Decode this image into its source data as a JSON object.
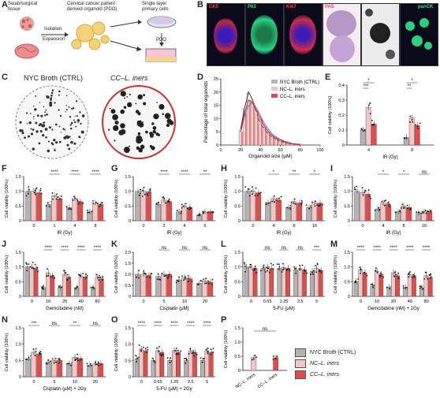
{
  "panel_letters": [
    "A",
    "B",
    "C",
    "D",
    "E",
    "F",
    "G",
    "H",
    "I",
    "J",
    "K",
    "L",
    "M",
    "N",
    "O",
    "P"
  ],
  "panelA": {
    "swab": "Swab/surgical\ntissue",
    "pdo": "Cervical cancer patient\nderived organoid (PDO)",
    "single": "Single layer\nprimary cells",
    "isolation": "Isolation",
    "expansion": "Expansion",
    "pdo_label": "PDO"
  },
  "panelB": {
    "labels": [
      {
        "text": "CK5",
        "color": "#ff3b3b"
      },
      {
        "text": "P63",
        "color": "#2ee08a"
      },
      {
        "text": "Ki67",
        "color": "#ff4040"
      },
      {
        "text": "PAS",
        "color": "#ff3b6b"
      },
      {
        "text": "",
        "color": "#ffffff"
      },
      {
        "text": "panCK",
        "color": "#2ee08a"
      }
    ]
  },
  "panelC": {
    "left_title": "NYC Broth (CTRL)",
    "right_title": "CC–L. iners"
  },
  "legend": {
    "items": [
      {
        "name": "NYC Broth (CTRL)",
        "color": "#b7b2b2"
      },
      {
        "name": "NC–L. iners",
        "color": "#f3c6c6"
      },
      {
        "name": "CC–L. iners",
        "color": "#e34b4b"
      }
    ]
  },
  "chart_data": [
    {
      "id": "D",
      "type": "bar",
      "xlabel": "Organoid size (μM)",
      "ylabel": "Percentage of total organoids",
      "xlim": [
        0,
        100
      ],
      "ylim": [
        0,
        25
      ],
      "xticks": [
        0,
        20,
        40,
        60,
        80,
        100
      ],
      "yticks": [
        0,
        5,
        10,
        15,
        20,
        25
      ],
      "legend": [
        "NYC Broth (CTRL)",
        "NC–L. iners",
        "CC–L. iners"
      ],
      "bins": [
        20,
        24,
        28,
        32,
        36,
        40,
        44,
        48,
        52,
        56,
        60,
        64,
        68,
        72,
        76,
        80
      ],
      "series": [
        {
          "name": "NYC Broth (CTRL)",
          "values": [
            6,
            14,
            20,
            17,
            12,
            8,
            6,
            4,
            3,
            2,
            1.5,
            1,
            0.7,
            0.5,
            0.3,
            0.2
          ]
        },
        {
          "name": "NC–L. iners",
          "values": [
            5,
            11,
            15,
            16,
            14,
            11,
            8,
            6,
            4,
            3,
            2,
            1.5,
            1,
            0.6,
            0.4,
            0.3
          ]
        },
        {
          "name": "CC–L. iners",
          "values": [
            5,
            12,
            17,
            16,
            13,
            10,
            7,
            5,
            3.5,
            2.5,
            2,
            1.2,
            0.8,
            0.5,
            0.3,
            0.2
          ]
        }
      ]
    },
    {
      "id": "E",
      "type": "bar",
      "xlabel": "IR (Gy)",
      "ylabel": "Cell viability (100%)",
      "ylim": [
        0,
        0.4
      ],
      "yticks": [
        "0",
        "0.1",
        "0.2",
        "0.3",
        "0.4"
      ],
      "categories": [
        "4",
        "8"
      ],
      "series": [
        {
          "name": "NYC Broth (CTRL)",
          "values": [
            0.1,
            0.05
          ]
        },
        {
          "name": "NC–L. iners",
          "values": [
            0.25,
            0.18
          ]
        },
        {
          "name": "CC–L. iners",
          "values": [
            0.14,
            0.13
          ]
        }
      ],
      "sig": [
        {
          "text": "*",
          "pair": [
            0,
            2
          ]
        },
        {
          "text": "***",
          "pair": [
            0,
            1
          ]
        },
        {
          "text": "*",
          "pair": [
            3,
            5
          ]
        },
        {
          "text": "**",
          "pair": [
            3,
            4
          ]
        }
      ]
    },
    {
      "id": "F",
      "type": "bar",
      "xlabel": "IR (Gy)",
      "ylabel": "Cell viability (100%)",
      "ylim": [
        0,
        1.5
      ],
      "yticks": [
        "0",
        "0.5",
        "1.0",
        "1.5"
      ],
      "categories": [
        "0",
        "1",
        "4",
        "8"
      ],
      "series": [
        {
          "name": "NYC Broth (CTRL)",
          "values": [
            1.0,
            0.55,
            0.45,
            0.3
          ]
        },
        {
          "name": "NC–L. iners",
          "values": [
            1.0,
            0.85,
            0.75,
            0.6
          ]
        },
        {
          "name": "CC–L. iners",
          "values": [
            0.95,
            0.75,
            0.65,
            0.55
          ]
        }
      ],
      "sig": [
        {
          "text": "****",
          "group": 1
        },
        {
          "text": "****",
          "group": 2
        },
        {
          "text": "****",
          "group": 3
        }
      ]
    },
    {
      "id": "G",
      "type": "bar",
      "xlabel": "IR (Gy)",
      "ylabel": "Cell viability (100%)",
      "ylim": [
        0,
        1.5
      ],
      "yticks": [
        "0",
        "0.5",
        "1.0",
        "1.5"
      ],
      "categories": [
        "0",
        "2",
        "4",
        "6"
      ],
      "series": [
        {
          "name": "NYC Broth (CTRL)",
          "values": [
            1.0,
            0.55,
            0.3,
            0.2
          ]
        },
        {
          "name": "NC–L. iners",
          "values": [
            1.0,
            0.7,
            0.5,
            0.3
          ]
        },
        {
          "name": "CC–L. iners",
          "values": [
            0.98,
            0.65,
            0.45,
            0.3
          ]
        }
      ],
      "sig": [
        {
          "text": "****",
          "group": 1
        },
        {
          "text": "****",
          "group": 2
        },
        {
          "text": "**",
          "group": 3
        }
      ]
    },
    {
      "id": "H",
      "type": "bar",
      "xlabel": "IR (Gy)",
      "ylabel": "Cell viability (100%)",
      "ylim": [
        0,
        1.5
      ],
      "yticks": [
        "0",
        "0.5",
        "1.0",
        "1.5"
      ],
      "categories": [
        "0",
        "4",
        "8",
        "16"
      ],
      "series": [
        {
          "name": "NYC Broth (CTRL)",
          "values": [
            1.0,
            0.6,
            0.45,
            0.45
          ]
        },
        {
          "name": "NC–L. iners",
          "values": [
            1.0,
            0.75,
            0.65,
            0.6
          ]
        },
        {
          "name": "CC–L. iners",
          "values": [
            0.95,
            0.7,
            0.6,
            0.6
          ]
        }
      ],
      "sig": [
        {
          "text": "*",
          "group": 1
        },
        {
          "text": "**",
          "group": 2
        },
        {
          "text": "*",
          "group": 3
        }
      ]
    },
    {
      "id": "I",
      "type": "bar",
      "xlabel": "IR (Gy)",
      "ylabel": "Cell viability (100%)",
      "ylim": [
        0,
        1.5
      ],
      "yticks": [
        "0",
        "0.5",
        "1.0",
        "1.5"
      ],
      "categories": [
        "0",
        "4",
        "8",
        "16"
      ],
      "series": [
        {
          "name": "NYC Broth (CTRL)",
          "values": [
            1.0,
            0.4,
            0.3,
            0.25
          ]
        },
        {
          "name": "NC–L. iners",
          "values": [
            0.95,
            0.6,
            0.5,
            0.3
          ]
        },
        {
          "name": "CC–L. iners",
          "values": [
            0.9,
            0.55,
            0.45,
            0.3
          ]
        }
      ],
      "sig": [
        {
          "text": "*",
          "group": 1
        },
        {
          "text": "*",
          "group": 2
        },
        {
          "text": "ns",
          "group": 3
        }
      ]
    },
    {
      "id": "J",
      "type": "bar",
      "xlabel": "Gemcitabine (nM)",
      "ylabel": "Cell viability (100%)",
      "ylim": [
        0,
        1.5
      ],
      "yticks": [
        "0",
        "0.5",
        "1.0",
        "1.5"
      ],
      "categories": [
        "0",
        "10",
        "20",
        "40",
        "80"
      ],
      "series": [
        {
          "name": "NYC Broth (CTRL)",
          "values": [
            1.0,
            0.3,
            0.3,
            0.3,
            0.28
          ]
        },
        {
          "name": "NC–L. iners",
          "values": [
            1.0,
            0.8,
            0.75,
            0.7,
            0.65
          ]
        },
        {
          "name": "CC–L. iners",
          "values": [
            0.95,
            0.7,
            0.65,
            0.65,
            0.6
          ]
        }
      ],
      "sig": [
        {
          "text": "****",
          "group": 1
        },
        {
          "text": "****",
          "group": 2
        },
        {
          "text": "****",
          "group": 3
        },
        {
          "text": "****",
          "group": 4
        }
      ]
    },
    {
      "id": "K",
      "type": "bar",
      "xlabel": "Cisplatin (μM)",
      "ylabel": "Cell viability (100%)",
      "ylim": [
        0,
        2.0
      ],
      "yticks": [
        "0",
        "0.5",
        "1.0",
        "1.5",
        "2.0"
      ],
      "categories": [
        "0",
        "5",
        "10",
        "20"
      ],
      "series": [
        {
          "name": "NYC Broth (CTRL)",
          "values": [
            1.0,
            0.9,
            0.75,
            0.6
          ]
        },
        {
          "name": "NC–L. iners",
          "values": [
            1.0,
            1.0,
            0.85,
            0.7
          ]
        },
        {
          "name": "CC–L. iners",
          "values": [
            0.95,
            1.0,
            0.8,
            0.65
          ]
        }
      ],
      "sig": [
        {
          "text": "ns",
          "group": 1
        },
        {
          "text": "ns",
          "group": 2
        },
        {
          "text": "ns",
          "group": 3
        }
      ]
    },
    {
      "id": "L",
      "type": "bar",
      "xlabel": "5-FU (μM)",
      "ylabel": "Cell viability (100%)",
      "ylim": [
        0,
        1.5
      ],
      "yticks": [
        "0",
        "0.5",
        "1.0",
        "1.5"
      ],
      "categories": [
        "0",
        "0.65",
        "1.25",
        "2.5",
        "5"
      ],
      "series": [
        {
          "name": "NYC Broth (CTRL)",
          "values": [
            1.0,
            0.95,
            0.95,
            0.9,
            0.85
          ]
        },
        {
          "name": "NC–L. iners",
          "values": [
            1.0,
            1.0,
            0.98,
            0.95,
            0.95
          ]
        },
        {
          "name": "CC–L. iners",
          "values": [
            0.95,
            0.95,
            0.95,
            0.9,
            0.88
          ]
        }
      ],
      "sig": [
        {
          "text": "ns",
          "group": 1
        },
        {
          "text": "ns",
          "group": 2
        },
        {
          "text": "ns",
          "group": 3
        },
        {
          "text": "***",
          "group": 4
        }
      ]
    },
    {
      "id": "M",
      "type": "bar",
      "xlabel": "Gemcitabine (nM) + 2Gy",
      "ylabel": "Cell viability (100%)",
      "ylim": [
        0,
        1.5
      ],
      "yticks": [
        "0",
        "0.5",
        "1.0",
        "1.5"
      ],
      "categories": [
        "0",
        "10",
        "20",
        "40",
        "80"
      ],
      "series": [
        {
          "name": "NYC Broth (CTRL)",
          "values": [
            0.5,
            0.35,
            0.3,
            0.3,
            0.3
          ]
        },
        {
          "name": "NC–L. iners",
          "values": [
            0.9,
            0.85,
            0.8,
            0.75,
            0.7
          ]
        },
        {
          "name": "CC–L. iners",
          "values": [
            0.8,
            0.75,
            0.7,
            0.7,
            0.65
          ]
        }
      ],
      "sig": [
        {
          "text": "****",
          "group": 0
        },
        {
          "text": "****",
          "group": 1
        },
        {
          "text": "****",
          "group": 2
        },
        {
          "text": "****",
          "group": 3
        },
        {
          "text": "****",
          "group": 4
        }
      ]
    },
    {
      "id": "N",
      "type": "bar",
      "xlabel": "Cisplatin (μM) + 2Gy",
      "ylabel": "Cell viability (100%)",
      "ylim": [
        0,
        1.5
      ],
      "yticks": [
        "0",
        "0.5",
        "1.0",
        "1.5"
      ],
      "categories": [
        "0",
        "5",
        "10",
        "20"
      ],
      "series": [
        {
          "name": "NYC Broth (CTRL)",
          "values": [
            0.55,
            0.45,
            0.4,
            0.35
          ]
        },
        {
          "name": "NC–L. iners",
          "values": [
            0.75,
            0.5,
            0.6,
            0.4
          ]
        },
        {
          "name": "CC–L. iners",
          "values": [
            0.7,
            0.5,
            0.55,
            0.4
          ]
        }
      ],
      "sig": [
        {
          "text": "***",
          "group": 0
        },
        {
          "text": "ns",
          "group": 1
        },
        {
          "text": "**",
          "group": 2
        },
        {
          "text": "ns",
          "group": 3
        }
      ]
    },
    {
      "id": "O",
      "type": "bar",
      "xlabel": "5-FU (μM) + 2Gy",
      "ylabel": "Cell viability (100%)",
      "ylim": [
        0,
        1.5
      ],
      "yticks": [
        "0",
        "0.5",
        "1.0",
        "1.5"
      ],
      "categories": [
        "0",
        "0.65",
        "1.25",
        "2.5",
        "5"
      ],
      "series": [
        {
          "name": "NYC Broth (CTRL)",
          "values": [
            0.55,
            0.5,
            0.5,
            0.5,
            0.5
          ]
        },
        {
          "name": "NC–L. iners",
          "values": [
            0.85,
            0.8,
            0.8,
            0.8,
            0.8
          ]
        },
        {
          "name": "CC–L. iners",
          "values": [
            0.8,
            0.75,
            0.75,
            0.75,
            0.75
          ]
        }
      ],
      "sig": [
        {
          "text": "****",
          "group": 0
        },
        {
          "text": "****",
          "group": 1
        },
        {
          "text": "****",
          "group": 2
        },
        {
          "text": "****",
          "group": 3
        },
        {
          "text": "****",
          "group": 4
        }
      ]
    },
    {
      "id": "P",
      "type": "bar",
      "xlabel": "",
      "ylabel": "Cell viability (100%)",
      "ylim": [
        0,
        1.5
      ],
      "yticks": [
        "0",
        "0.5",
        "1.0",
        "1.5"
      ],
      "categories": [
        "NC–L. iners",
        "CC–L. iners"
      ],
      "series": [
        {
          "name": "value",
          "values": [
            0.45,
            0.45
          ]
        }
      ],
      "sig": [
        {
          "text": "ns",
          "pair": [
            0,
            1
          ]
        }
      ]
    }
  ]
}
